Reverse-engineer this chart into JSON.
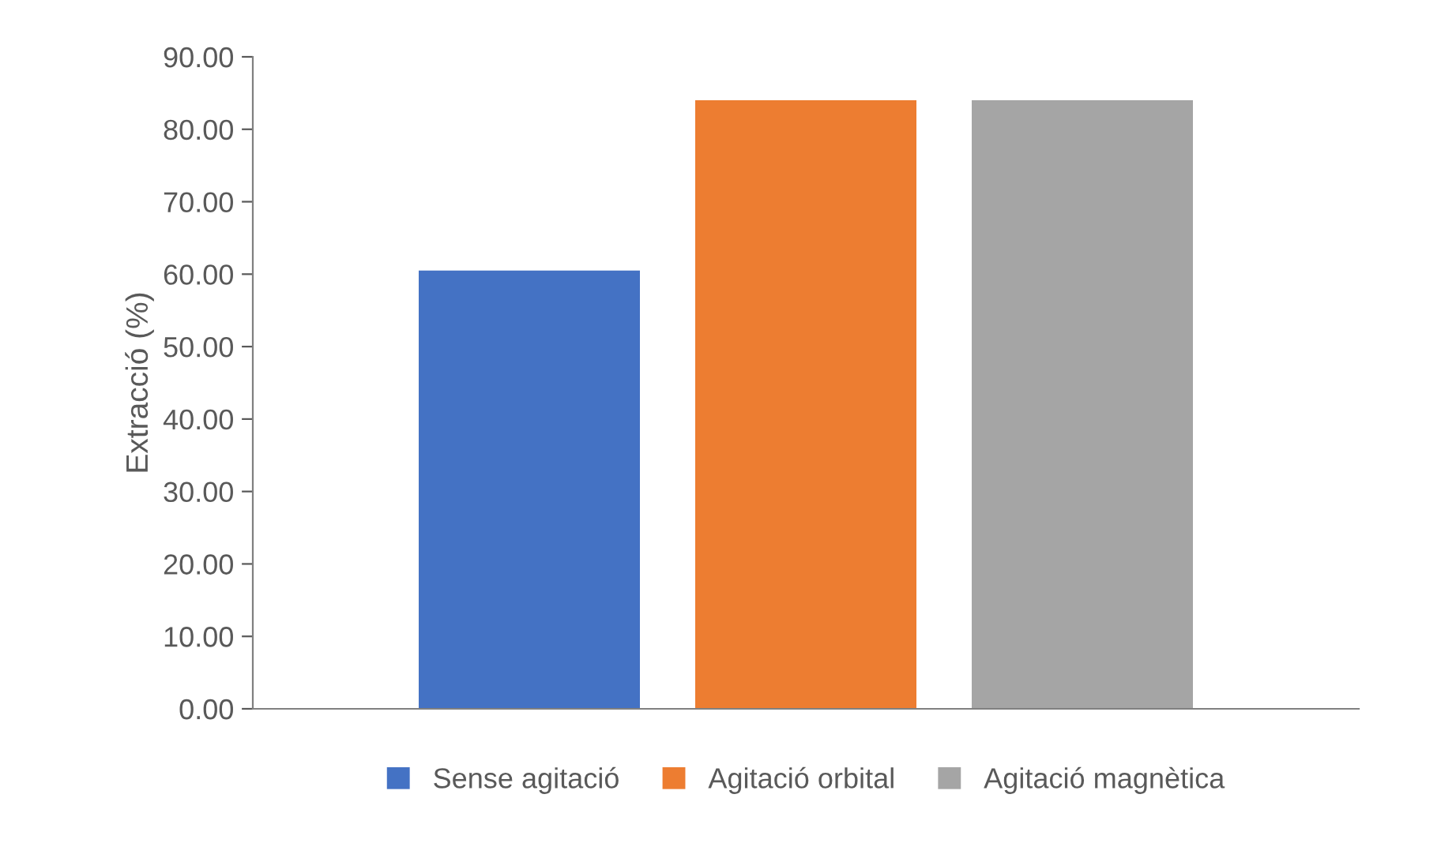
{
  "chart_data": {
    "type": "bar",
    "ylabel": "Extracció (%)",
    "categories": [
      null
    ],
    "series": [
      {
        "name": "Sense agitació",
        "color": "#4472c4",
        "values": [
          60.5
        ]
      },
      {
        "name": "Agitació orbital",
        "color": "#ed7d31",
        "values": [
          84.0
        ]
      },
      {
        "name": "Agitació magnètica",
        "color": "#a5a5a5",
        "values": [
          84.0
        ]
      }
    ],
    "ylim": [
      0,
      90
    ],
    "yticks": [
      {
        "value": 0,
        "label": "0.00"
      },
      {
        "value": 10,
        "label": "10.00"
      },
      {
        "value": 20,
        "label": "20.00"
      },
      {
        "value": 30,
        "label": "30.00"
      },
      {
        "value": 40,
        "label": "40.00"
      },
      {
        "value": 50,
        "label": "50.00"
      },
      {
        "value": 60,
        "label": "60.00"
      },
      {
        "value": 70,
        "label": "70.00"
      },
      {
        "value": 80,
        "label": "80.00"
      },
      {
        "value": 90,
        "label": "90.00"
      }
    ],
    "grid": false,
    "legend": "bottom"
  }
}
